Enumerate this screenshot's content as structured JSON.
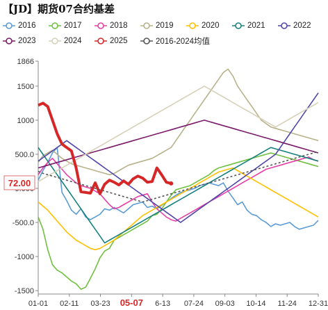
{
  "chart_data": {
    "type": "line",
    "title": "【JD】期货07合约基差",
    "x_tick_labels": [
      "01-01",
      "02-11",
      "03-23",
      "05-07",
      "6-13",
      "07-24",
      "09-03",
      "10-14",
      "11-24",
      "12-31"
    ],
    "highlight_tick_label": "05-07",
    "y_tick_labels": [
      "1866",
      "1500",
      "1000",
      "500.0",
      "0.000",
      "-500.0",
      "-1000",
      "-1500"
    ],
    "ylim": [
      -1550,
      1866
    ],
    "latest_value_label": "72.00",
    "legend_placement": "top",
    "series": [
      {
        "name": "2016",
        "color": "#5b9bd5",
        "values": [
          120,
          260,
          380,
          520,
          600,
          -60,
          -180,
          -320,
          -380,
          -300,
          -420,
          -460,
          -420,
          -380,
          -300,
          -320,
          -280,
          -320,
          -360,
          -300,
          -240,
          -220,
          -200,
          -280,
          -260,
          -300,
          -250,
          -200,
          -150,
          -100,
          -60,
          -40,
          -20,
          0,
          40,
          60,
          80,
          60,
          40,
          80,
          -40,
          -140,
          -240,
          -200,
          -320,
          -380,
          -400,
          -460,
          -500,
          -560,
          -520,
          -540,
          -520,
          -500,
          -560,
          -600,
          -580,
          -560,
          -540,
          -470
        ]
      },
      {
        "name": "2017",
        "color": "#70c040",
        "values": [
          -420,
          -600,
          -900,
          -1120,
          -1200,
          -1240,
          -1300,
          -1360,
          -1400,
          -1480,
          -1450,
          -1320,
          -1180,
          -1020,
          -920,
          -880,
          -760,
          -720,
          -680,
          -640,
          -600,
          -560,
          -520,
          -480,
          -400,
          -380,
          -300,
          -200,
          -100,
          -20,
          0,
          20,
          40,
          80,
          120,
          160,
          200,
          260,
          300,
          320,
          340,
          360,
          380,
          400,
          420,
          440,
          460,
          480,
          500,
          520,
          500,
          480,
          460,
          440,
          420,
          400,
          380,
          360,
          340,
          320
        ]
      },
      {
        "name": "2018",
        "color": "#e83ea6",
        "values": [
          200,
          300,
          380,
          440,
          360,
          280,
          200,
          140,
          80,
          40,
          20,
          0,
          -40,
          -80,
          -160,
          -240,
          -300,
          -280,
          -240,
          -200,
          -160,
          -120,
          -100,
          -80,
          -200,
          -300,
          -360,
          -420,
          -460,
          -480,
          -440,
          -400,
          -360,
          -320,
          -280,
          -240,
          -200,
          -160,
          -120,
          -80,
          -40,
          0,
          40,
          80,
          120,
          160,
          200,
          240,
          280,
          300,
          320,
          340,
          360,
          380,
          400,
          420,
          440,
          460,
          420,
          400
        ]
      },
      {
        "name": "2019",
        "color": "#b7b28a",
        "values": [
          380,
          480,
          520,
          560,
          500,
          440,
          400,
          360,
          340,
          320,
          300,
          280,
          260,
          240,
          220,
          200,
          220,
          260,
          300,
          340,
          360,
          380,
          400,
          420,
          440,
          480,
          520,
          560,
          600,
          700,
          800,
          900,
          1000,
          1100,
          1200,
          1300,
          1400,
          1500,
          1600,
          1700,
          1750,
          1650,
          1500,
          1400,
          1300,
          1200,
          1100,
          1000,
          950,
          900,
          880,
          860,
          840,
          820,
          800,
          780,
          760,
          740,
          720,
          700
        ]
      },
      {
        "name": "2020",
        "color": "#ffc000",
        "values": [
          -200,
          -260,
          -320,
          -400,
          -480,
          -560,
          -640,
          -700,
          -760,
          -800,
          -840,
          -880,
          -900,
          -880,
          -840,
          -800,
          -760,
          -700,
          -640,
          -580,
          -520,
          -460,
          -400,
          -360,
          -320,
          -280,
          -240,
          -200,
          -160,
          -120,
          -80,
          -40,
          0,
          40,
          80,
          120,
          160,
          200,
          240,
          260,
          280,
          300,
          260,
          220,
          180,
          140,
          100,
          60,
          20,
          -20,
          -60,
          -100,
          -140,
          -180,
          -220,
          -260,
          -300,
          -340,
          -380,
          -420
        ]
      },
      {
        "name": "2021",
        "color": "#17807e",
        "values": [
          600,
          500,
          400,
          300,
          200,
          100,
          0,
          -100,
          -200,
          -300,
          -400,
          -500,
          -600,
          -700,
          -800,
          -760,
          -720,
          -680,
          -640,
          -600,
          -560,
          -520,
          -480,
          -440,
          -400,
          -360,
          -320,
          -280,
          -240,
          -200,
          -160,
          -120,
          -80,
          -40,
          0,
          40,
          80,
          120,
          160,
          200,
          240,
          280,
          320,
          360,
          400,
          440,
          480,
          520,
          560,
          600,
          580,
          560,
          540,
          520,
          500,
          480,
          460,
          440,
          420,
          400
        ]
      },
      {
        "name": "2022",
        "color": "#5047a8",
        "values": [
          400,
          450,
          500,
          550,
          600,
          650,
          700,
          650,
          600,
          550,
          500,
          450,
          400,
          350,
          300,
          250,
          200,
          150,
          100,
          50,
          0,
          -50,
          -100,
          -150,
          -200,
          -250,
          -300,
          -350,
          -400,
          -450,
          -500,
          -450,
          -400,
          -350,
          -300,
          -250,
          -200,
          -150,
          -100,
          -50,
          0,
          50,
          100,
          150,
          200,
          250,
          300,
          350,
          400,
          450,
          500,
          600,
          700,
          800,
          900,
          1000,
          1100,
          1200,
          1300,
          1400
        ]
      },
      {
        "name": "2023",
        "color": "#7b1a6a",
        "values": [
          300,
          320,
          340,
          360,
          380,
          400,
          420,
          440,
          460,
          480,
          500,
          520,
          540,
          560,
          580,
          600,
          620,
          640,
          660,
          680,
          700,
          720,
          740,
          760,
          780,
          800,
          820,
          840,
          860,
          880,
          900,
          920,
          940,
          960,
          980,
          1000,
          980,
          960,
          940,
          920,
          900,
          880,
          860,
          840,
          820,
          800,
          780,
          760,
          740,
          720,
          700,
          680,
          660,
          640,
          620,
          600,
          580,
          560,
          540,
          520
        ]
      },
      {
        "name": "2024",
        "color": "#d6d1b8",
        "values": [
          100,
          140,
          180,
          220,
          260,
          300,
          340,
          380,
          420,
          460,
          500,
          540,
          580,
          620,
          660,
          700,
          740,
          780,
          820,
          860,
          900,
          940,
          980,
          1020,
          1060,
          1100,
          1140,
          1180,
          1220,
          1260,
          1300,
          1340,
          1380,
          1420,
          1460,
          1500,
          1460,
          1420,
          1380,
          1340,
          1300,
          1260,
          1220,
          1180,
          1140,
          1100,
          1060,
          1020,
          980,
          940,
          900,
          940,
          980,
          1020,
          1060,
          1100,
          1140,
          1180,
          1220,
          1260
        ]
      },
      {
        "name": "2025",
        "color": "#d62728",
        "values": [
          1220,
          1250,
          1200,
          1000,
          800,
          650,
          600,
          550,
          300,
          -50,
          -60,
          -70,
          80,
          -80,
          60,
          120,
          90,
          50,
          110,
          60,
          140,
          180,
          150,
          90,
          100,
          300,
          200,
          90,
          72
        ]
      },
      {
        "name": "2016-2024均值",
        "color": "#555555",
        "dashed": true,
        "values": [
          250,
          220,
          200,
          180,
          160,
          140,
          120,
          100,
          80,
          60,
          40,
          20,
          0,
          -20,
          -40,
          -60,
          -80,
          -100,
          -120,
          -140,
          -160,
          -180,
          -200,
          -180,
          -160,
          -140,
          -120,
          -100,
          -80,
          -60,
          -40,
          -20,
          0,
          20,
          40,
          60,
          80,
          100,
          120,
          140,
          160,
          180,
          200,
          220,
          240,
          260,
          280,
          300,
          320,
          340,
          360,
          380,
          400,
          420,
          440,
          460,
          480,
          500,
          520,
          540
        ]
      }
    ]
  }
}
